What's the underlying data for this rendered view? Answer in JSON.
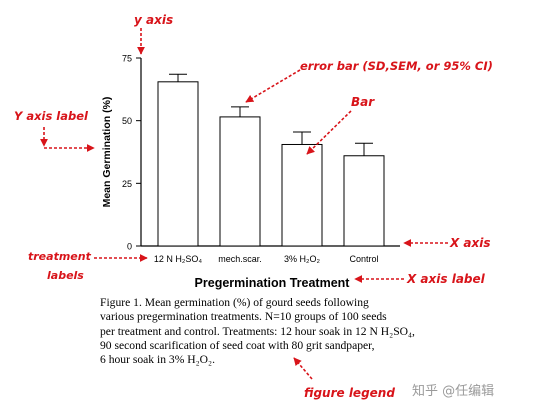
{
  "chart_data": {
    "type": "bar",
    "categories": [
      "12 N H₂SO₄",
      "mech.scar.",
      "3% H₂O₂",
      "Control"
    ],
    "values": [
      65.5,
      51.5,
      40.5,
      36
    ],
    "errors": [
      3,
      4,
      5,
      5
    ],
    "xlabel": "Pregermination Treatment",
    "ylabel": "Mean Germination (%)",
    "ylim": [
      0,
      75
    ],
    "yticks": [
      0,
      25,
      50,
      75
    ],
    "bar_color": "#ffffff",
    "grid": false
  },
  "annotations": {
    "y_axis": "y axis",
    "error_bar": "error bar (SD,SEM, or 95% CI)",
    "bar": "Bar",
    "y_axis_label": "Y axis label",
    "treatment_labels": [
      "treatment",
      "labels"
    ],
    "x_axis": "X axis",
    "x_axis_label": "X axis label",
    "figure_legend": "figure legend",
    "color": "#d8141a"
  },
  "caption": {
    "lines": [
      "Figure 1. Mean germination (%) of gourd seeds following",
      "various pregermination treatments. N=10 groups of 100 seeds",
      "per treatment and control. Treatments: 12 hour soak in 12 N H₂SO₄,",
      "90 second scarification of seed coat with 80 grit sandpaper,",
      "6 hour soak in 3% H₂O₂."
    ]
  },
  "watermark": "知乎 @任编辑"
}
